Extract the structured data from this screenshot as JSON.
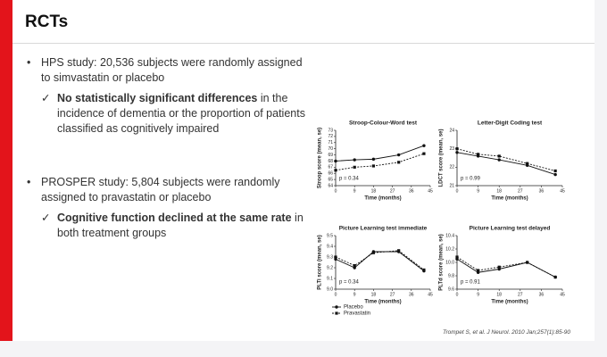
{
  "slide": {
    "title": "RCTs",
    "bullets": [
      {
        "text": "HPS study: 20,536 subjects were randomly assigned to simvastatin or placebo",
        "sub": {
          "bold": "No statistically significant differences",
          "text": " in the incidence of dementia or the proportion of patients classified as cognitively impaired"
        }
      },
      {
        "text": "PROSPER study: 5,804 subjects were randomly assigned to pravastatin or placebo",
        "sub": {
          "bold": "Cognitive function declined at the same rate",
          "text": " in both treatment groups"
        }
      }
    ],
    "citation": "Trompet S, et al. J Neurol. 2010 Jan;257(1):85-90"
  },
  "chart_data": [
    {
      "type": "line",
      "title": "Stroop-Colour-Word test",
      "x_label": "Time (months)",
      "y_label": "Stroop score (mean, se)",
      "annotation": "p = 0.34",
      "x": [
        0,
        9,
        18,
        30,
        42
      ],
      "xlim": [
        0,
        45
      ],
      "xticks": [
        0,
        9,
        18,
        27,
        36,
        45
      ],
      "ylim": [
        64,
        73
      ],
      "yticks": [
        64,
        65,
        66,
        67,
        68,
        69,
        70,
        71,
        72,
        73
      ],
      "series": [
        {
          "color": "#111111",
          "values": [
            68,
            68.2,
            68.3,
            69,
            70.5
          ]
        },
        {
          "color": "#111111",
          "values": [
            66.5,
            67,
            67.2,
            67.8,
            69.2
          ]
        }
      ]
    },
    {
      "type": "line",
      "title": "Letter-Digit Coding test",
      "x_label": "Time (months)",
      "y_label": "LDCT score (mean, se)",
      "annotation": "p = 0.99",
      "x": [
        0,
        9,
        18,
        30,
        42
      ],
      "xlim": [
        0,
        45
      ],
      "xticks": [
        0,
        9,
        18,
        27,
        36,
        45
      ],
      "ylim": [
        21,
        24
      ],
      "yticks": [
        21,
        22,
        23,
        24
      ],
      "series": [
        {
          "color": "#111111",
          "values": [
            22.8,
            22.6,
            22.4,
            22.1,
            21.6
          ]
        },
        {
          "color": "#111111",
          "values": [
            23,
            22.7,
            22.6,
            22.2,
            21.8
          ]
        }
      ]
    },
    {
      "type": "line",
      "title": "Picture Learning test immediate",
      "x_label": "Time (months)",
      "y_label": "PLTi score (mean, se)",
      "annotation": "p = 0.34",
      "x": [
        0,
        9,
        18,
        30,
        42
      ],
      "xlim": [
        0,
        45
      ],
      "xticks": [
        0,
        9,
        18,
        27,
        36,
        45
      ],
      "ylim": [
        9,
        9.5
      ],
      "yticks": [
        {
          "value": 9,
          "label": "9.0"
        },
        9.1,
        9.2,
        9.3,
        9.4,
        9.5
      ],
      "legend": true,
      "series": [
        {
          "name": "Placebo",
          "color": "#111111",
          "values": [
            9.28,
            9.2,
            9.35,
            9.35,
            9.17
          ]
        },
        {
          "name": "Pravastatin",
          "color": "#111111",
          "values": [
            9.3,
            9.22,
            9.34,
            9.36,
            9.18
          ]
        }
      ]
    },
    {
      "type": "line",
      "title": "Picture Learning test delayed",
      "x_label": "Time (months)",
      "y_label": "PLTd score (mean, se)",
      "annotation": "p = 0.91",
      "x": [
        0,
        9,
        18,
        30,
        42
      ],
      "xlim": [
        0,
        45
      ],
      "xticks": [
        0,
        9,
        18,
        27,
        36,
        45
      ],
      "ylim": [
        9.6,
        10.4
      ],
      "yticks": [
        9.6,
        9.8,
        {
          "value": 10,
          "label": "10.0"
        },
        10.2,
        10.4
      ],
      "series": [
        {
          "color": "#111111",
          "values": [
            10.05,
            9.85,
            9.9,
            10,
            9.78
          ]
        },
        {
          "color": "#111111",
          "values": [
            10.08,
            9.88,
            9.93,
            10,
            9.78
          ]
        }
      ]
    }
  ]
}
